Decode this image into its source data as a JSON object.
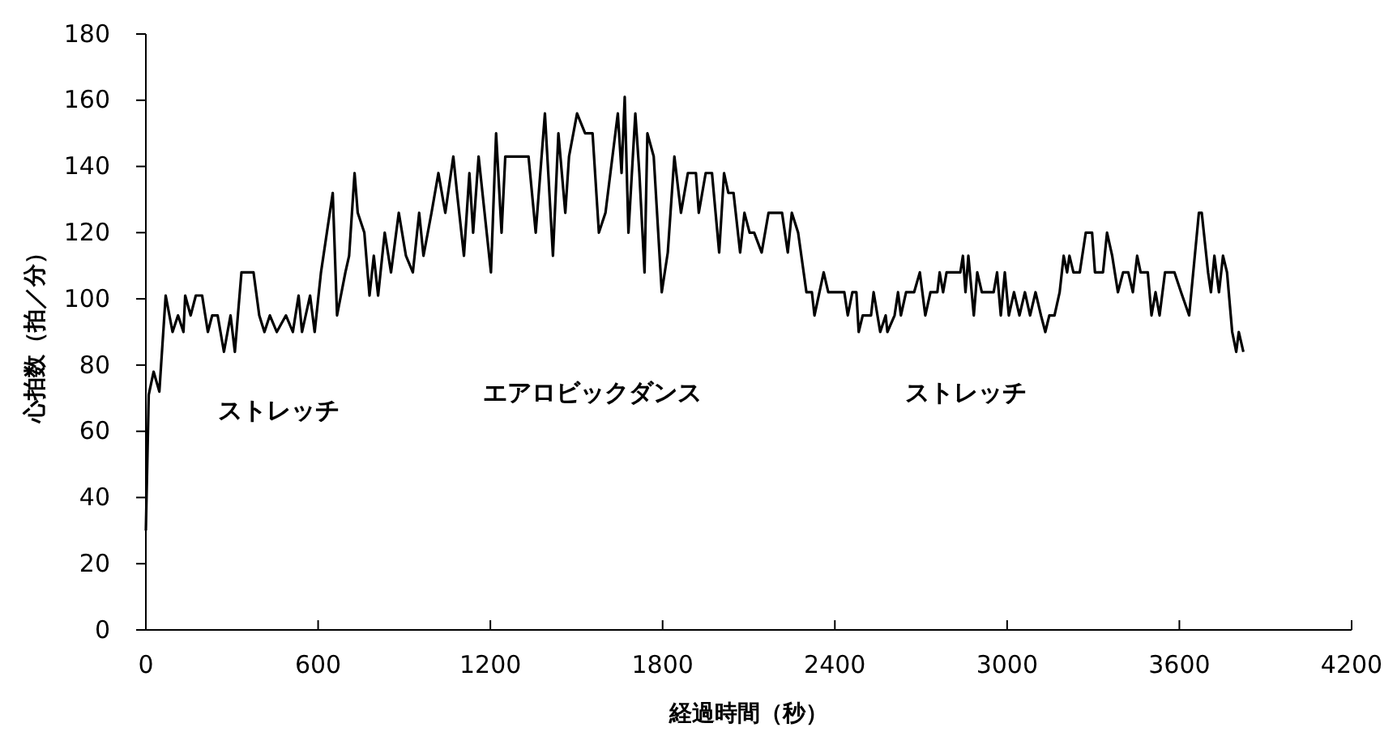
{
  "chart_data": {
    "type": "line",
    "xlabel": "経過時間（秒）",
    "ylabel": "心拍数（拍／分）",
    "xlim": [
      0,
      4200
    ],
    "xticks": [
      0,
      600,
      1200,
      1800,
      2400,
      3000,
      3600,
      4200
    ],
    "ylim": [
      0,
      180
    ],
    "yticks": [
      0,
      20,
      40,
      60,
      80,
      100,
      120,
      140,
      160,
      180
    ],
    "grid": false,
    "marker": "none",
    "line_style": "solid",
    "annotations": [
      "ストレッチ",
      "エアロビックダンス",
      "ストレッチ"
    ],
    "series": [
      {
        "color": "#000000",
        "x": [
          0,
          10,
          27,
          47,
          69,
          93,
          112,
          131,
          137,
          156,
          174,
          196,
          216,
          231,
          250,
          272,
          295,
          310,
          333,
          375,
          395,
          413,
          432,
          456,
          488,
          512,
          532,
          544,
          572,
          588,
          610,
          651,
          666,
          695,
          708,
          727,
          738,
          761,
          779,
          794,
          809,
          832,
          854,
          881,
          906,
          930,
          952,
          967,
          995,
          1019,
          1043,
          1071,
          1084,
          1108,
          1127,
          1140,
          1159,
          1202,
          1220,
          1239,
          1252,
          1333,
          1358,
          1390,
          1418,
          1437,
          1461,
          1474,
          1502,
          1530,
          1556,
          1578,
          1601,
          1644,
          1657,
          1668,
          1681,
          1705,
          1719,
          1737,
          1747,
          1769,
          1797,
          1818,
          1841,
          1864,
          1888,
          1916,
          1926,
          1950,
          1972,
          1997,
          2014,
          2029,
          2047,
          2070,
          2085,
          2103,
          2119,
          2145,
          2169,
          2216,
          2236,
          2250,
          2272,
          2301,
          2320,
          2329,
          2361,
          2377,
          2433,
          2445,
          2461,
          2475,
          2483,
          2497,
          2526,
          2535,
          2558,
          2577,
          2583,
          2608,
          2620,
          2630,
          2648,
          2676,
          2696,
          2715,
          2733,
          2757,
          2765,
          2777,
          2789,
          2837,
          2846,
          2855,
          2865,
          2884,
          2896,
          2912,
          2953,
          2965,
          2978,
          2992,
          3006,
          3024,
          3043,
          3062,
          3080,
          3099,
          3118,
          3133,
          3147,
          3165,
          3183,
          3197,
          3209,
          3217,
          3231,
          3253,
          3274,
          3296,
          3306,
          3334,
          3348,
          3366,
          3386,
          3404,
          3422,
          3438,
          3453,
          3465,
          3490,
          3503,
          3517,
          3531,
          3550,
          3583,
          3606,
          3634,
          3668,
          3678,
          3700,
          3710,
          3722,
          3738,
          3752,
          3766,
          3784,
          3798,
          3807,
          3823
        ],
        "values": [
          30,
          71,
          78,
          72,
          101,
          90,
          95,
          90,
          101,
          95,
          101,
          101,
          90,
          95,
          95,
          84,
          95,
          84,
          108,
          108,
          95,
          90,
          95,
          90,
          95,
          90,
          101,
          90,
          101,
          90,
          108,
          132,
          95,
          108,
          113,
          138,
          126,
          120,
          101,
          113,
          101,
          120,
          108,
          126,
          113,
          108,
          126,
          113,
          126,
          138,
          126,
          143,
          132,
          113,
          138,
          120,
          143,
          108,
          150,
          120,
          143,
          143,
          120,
          156,
          113,
          150,
          126,
          143,
          156,
          150,
          150,
          120,
          126,
          156,
          138,
          161,
          120,
          156,
          138,
          108,
          150,
          143,
          102,
          114,
          143,
          126,
          138,
          138,
          126,
          138,
          138,
          114,
          138,
          132,
          132,
          114,
          126,
          120,
          120,
          114,
          126,
          126,
          114,
          126,
          120,
          102,
          102,
          95,
          108,
          102,
          102,
          95,
          102,
          102,
          90,
          95,
          95,
          102,
          90,
          95,
          90,
          95,
          102,
          95,
          102,
          102,
          108,
          95,
          102,
          102,
          108,
          102,
          108,
          108,
          113,
          102,
          113,
          95,
          108,
          102,
          102,
          108,
          95,
          108,
          95,
          102,
          95,
          102,
          95,
          102,
          95,
          90,
          95,
          95,
          102,
          113,
          108,
          113,
          108,
          108,
          120,
          120,
          108,
          108,
          120,
          113,
          102,
          108,
          108,
          102,
          113,
          108,
          108,
          95,
          102,
          95,
          108,
          108,
          102,
          95,
          126,
          126,
          108,
          102,
          113,
          102,
          113,
          108,
          90,
          84,
          90,
          84
        ]
      }
    ]
  }
}
